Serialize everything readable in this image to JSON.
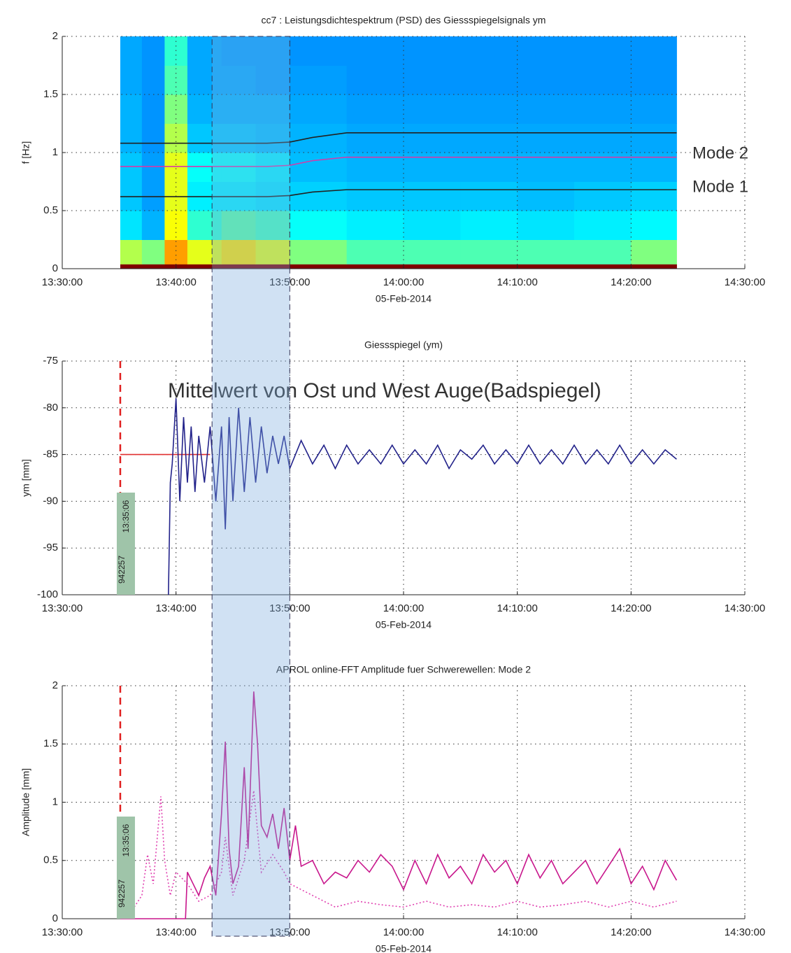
{
  "highlight_span": [
    "13:43:10",
    "13:50:00"
  ],
  "chart_data": [
    {
      "type": "heatmap",
      "title": "cc7 : Leistungsdichtespektrum (PSD) des Giessspiegelsignals ym",
      "x_label": "05-Feb-2014",
      "y_label": "f [Hz]",
      "xlim": [
        "13:30:00",
        "14:30:00"
      ],
      "xticks": [
        "13:30:00",
        "13:40:00",
        "13:50:00",
        "14:00:00",
        "14:10:00",
        "14:20:00",
        "14:30:00"
      ],
      "ylim": [
        0,
        2
      ],
      "yticks": [
        0,
        0.5,
        1,
        1.5,
        2
      ],
      "grid": true,
      "x_edges": [
        "13:35:06",
        "13:37:00",
        "13:39:00",
        "13:41:00",
        "13:44:00",
        "13:47:00",
        "13:50:00",
        "13:55:00",
        "14:00:00",
        "14:05:00",
        "14:10:00",
        "14:15:00",
        "14:20:00",
        "14:24:00"
      ],
      "y_edges": [
        0,
        0.04,
        0.25,
        0.5,
        0.75,
        1,
        1.25,
        1.5,
        1.75,
        2
      ],
      "z": [
        [
          1,
          1,
          1,
          1,
          1,
          1,
          1,
          1,
          1,
          1,
          1,
          1,
          1
        ],
        [
          0.55,
          0.5,
          0.72,
          0.6,
          0.65,
          0.6,
          0.5,
          0.45,
          0.45,
          0.45,
          0.45,
          0.45,
          0.5
        ],
        [
          0.35,
          0.3,
          0.62,
          0.42,
          0.46,
          0.44,
          0.38,
          0.36,
          0.35,
          0.36,
          0.35,
          0.36,
          0.37
        ],
        [
          0.32,
          0.28,
          0.6,
          0.36,
          0.36,
          0.35,
          0.33,
          0.32,
          0.32,
          0.32,
          0.31,
          0.32,
          0.33
        ],
        [
          0.32,
          0.28,
          0.6,
          0.38,
          0.38,
          0.36,
          0.31,
          0.3,
          0.3,
          0.3,
          0.3,
          0.3,
          0.3
        ],
        [
          0.3,
          0.27,
          0.55,
          0.32,
          0.32,
          0.31,
          0.3,
          0.29,
          0.29,
          0.29,
          0.29,
          0.29,
          0.29
        ],
        [
          0.3,
          0.27,
          0.5,
          0.3,
          0.3,
          0.3,
          0.29,
          0.28,
          0.28,
          0.28,
          0.28,
          0.28,
          0.28
        ],
        [
          0.29,
          0.27,
          0.45,
          0.29,
          0.29,
          0.28,
          0.28,
          0.27,
          0.27,
          0.27,
          0.27,
          0.27,
          0.27
        ],
        [
          0.29,
          0.27,
          0.42,
          0.29,
          0.28,
          0.28,
          0.27,
          0.27,
          0.27,
          0.27,
          0.27,
          0.27,
          0.27
        ]
      ],
      "series": [
        {
          "color": "#222222",
          "x": [
            "13:35:06",
            "13:48:00",
            "13:50:00",
            "13:52:00",
            "13:55:00",
            "14:24:00"
          ],
          "values": [
            1.08,
            1.08,
            1.09,
            1.13,
            1.17,
            1.17
          ]
        },
        {
          "color": "#d63aa8",
          "x": [
            "13:35:06",
            "13:48:00",
            "13:50:00",
            "13:52:00",
            "13:55:00",
            "14:24:00"
          ],
          "values": [
            0.88,
            0.88,
            0.89,
            0.93,
            0.96,
            0.96
          ]
        },
        {
          "color": "#222222",
          "x": [
            "13:35:06",
            "13:48:00",
            "13:50:00",
            "13:52:00",
            "13:55:00",
            "14:24:00"
          ],
          "values": [
            0.62,
            0.62,
            0.63,
            0.66,
            0.68,
            0.68
          ]
        }
      ],
      "annotations": [
        "Mode 2",
        "Mode 1"
      ]
    },
    {
      "type": "line",
      "title": "Giessspiegel (ym)",
      "x_label": "05-Feb-2014",
      "y_label": "ym [mm]",
      "xlim": [
        "13:30:00",
        "14:30:00"
      ],
      "xticks": [
        "13:30:00",
        "13:40:00",
        "13:50:00",
        "14:00:00",
        "14:10:00",
        "14:20:00",
        "14:30:00"
      ],
      "ylim": [
        -100,
        -75
      ],
      "yticks": [
        -100,
        -95,
        -90,
        -85,
        -80,
        -75
      ],
      "grid": true,
      "marker": {
        "x": "13:35:06",
        "labels": [
          "942257",
          "13:35:06"
        ]
      },
      "series": [
        {
          "color": "#e03030",
          "x": [
            "13:35:06",
            "13:43:00"
          ],
          "values": [
            -85,
            -85
          ]
        },
        {
          "color": "#22228a",
          "x": [
            "13:39:20",
            "13:39:30",
            "13:39:40",
            "13:40:00",
            "13:40:20",
            "13:40:40",
            "13:41:00",
            "13:41:20",
            "13:41:40",
            "13:42:00",
            "13:42:30",
            "13:43:00",
            "13:43:30",
            "13:44:00",
            "13:44:20",
            "13:44:40",
            "13:45:00",
            "13:45:30",
            "13:46:00",
            "13:46:30",
            "13:47:00",
            "13:47:30",
            "13:48:00",
            "13:48:30",
            "13:49:00",
            "13:49:30",
            "13:50:00",
            "13:51:00",
            "13:52:00",
            "13:53:00",
            "13:54:00",
            "13:55:00",
            "13:56:00",
            "13:57:00",
            "13:58:00",
            "13:59:00",
            "14:00:00",
            "14:01:00",
            "14:02:00",
            "14:03:00",
            "14:04:00",
            "14:05:00",
            "14:06:00",
            "14:07:00",
            "14:08:00",
            "14:09:00",
            "14:10:00",
            "14:11:00",
            "14:12:00",
            "14:13:00",
            "14:14:00",
            "14:15:00",
            "14:16:00",
            "14:17:00",
            "14:18:00",
            "14:19:00",
            "14:20:00",
            "14:21:00",
            "14:22:00",
            "14:23:00",
            "14:24:00"
          ],
          "values": [
            -100,
            -88,
            -86,
            -79,
            -90,
            -81,
            -88,
            -82,
            -89,
            -83,
            -88,
            -82,
            -90,
            -82,
            -93,
            -81,
            -90,
            -80,
            -89,
            -81,
            -88,
            -82,
            -87,
            -83,
            -86,
            -83,
            -86.5,
            -83.5,
            -86,
            -84,
            -86.5,
            -84,
            -86,
            -84.5,
            -86,
            -84,
            -86,
            -84.5,
            -86,
            -84,
            -86.5,
            -84.5,
            -85.5,
            -84,
            -86,
            -84.5,
            -86,
            -84,
            -86,
            -84.5,
            -86,
            -84,
            -86,
            -84.5,
            -86,
            -84,
            -86,
            -84.5,
            -86,
            -84.5,
            -85.5
          ]
        }
      ],
      "annotations": [
        "Mittelwert von Ost und West Auge(Badspiegel)"
      ]
    },
    {
      "type": "line",
      "title": "APROL online-FFT Amplitude fuer Schwerewellen: Mode 2",
      "x_label": "05-Feb-2014",
      "y_label": "Amplitude [mm]",
      "xlim": [
        "13:30:00",
        "14:30:00"
      ],
      "xticks": [
        "13:30:00",
        "13:40:00",
        "13:50:00",
        "14:00:00",
        "14:10:00",
        "14:20:00",
        "14:30:00"
      ],
      "ylim": [
        0,
        2
      ],
      "yticks": [
        0,
        0.5,
        1,
        1.5,
        2
      ],
      "grid": true,
      "marker": {
        "x": "13:35:06",
        "labels": [
          "942257",
          "13:35:06"
        ]
      },
      "series": [
        {
          "color": "#e040b0",
          "dashed": true,
          "x": [
            "13:36:00",
            "13:37:00",
            "13:37:30",
            "13:38:00",
            "13:38:40",
            "13:39:00",
            "13:39:30",
            "13:40:00",
            "13:41:00",
            "13:42:00",
            "13:43:00",
            "13:44:00",
            "13:44:20",
            "13:45:00",
            "13:46:00",
            "13:46:50",
            "13:47:30",
            "13:48:30",
            "13:49:30",
            "13:50:00",
            "13:52:00",
            "13:54:00",
            "13:56:00",
            "13:58:00",
            "14:00:00",
            "14:02:00",
            "14:04:00",
            "14:06:00",
            "14:08:00",
            "14:10:00",
            "14:12:00",
            "14:14:00",
            "14:16:00",
            "14:18:00",
            "14:20:00",
            "14:22:00",
            "14:24:00"
          ],
          "values": [
            0.05,
            0.2,
            0.55,
            0.3,
            1.05,
            0.5,
            0.2,
            0.4,
            0.3,
            0.15,
            0.2,
            0.4,
            0.7,
            0.2,
            0.5,
            1.1,
            0.4,
            0.55,
            0.4,
            0.3,
            0.2,
            0.1,
            0.15,
            0.12,
            0.1,
            0.15,
            0.1,
            0.12,
            0.1,
            0.15,
            0.1,
            0.12,
            0.15,
            0.1,
            0.15,
            0.1,
            0.15
          ]
        },
        {
          "color": "#c8168c",
          "x": [
            "13:35:06",
            "13:40:50",
            "13:41:00",
            "13:41:30",
            "13:42:00",
            "13:42:30",
            "13:43:00",
            "13:43:30",
            "13:44:00",
            "13:44:20",
            "13:44:40",
            "13:45:00",
            "13:45:30",
            "13:46:00",
            "13:46:20",
            "13:46:50",
            "13:47:10",
            "13:47:30",
            "13:48:00",
            "13:48:30",
            "13:49:00",
            "13:49:30",
            "13:50:00",
            "13:50:30",
            "13:51:00",
            "13:52:00",
            "13:53:00",
            "13:54:00",
            "13:55:00",
            "13:56:00",
            "13:57:00",
            "13:58:00",
            "13:59:00",
            "14:00:00",
            "14:01:00",
            "14:02:00",
            "14:03:00",
            "14:04:00",
            "14:05:00",
            "14:06:00",
            "14:07:00",
            "14:08:00",
            "14:09:00",
            "14:10:00",
            "14:11:00",
            "14:12:00",
            "14:13:00",
            "14:14:00",
            "14:15:00",
            "14:16:00",
            "14:17:00",
            "14:18:00",
            "14:19:00",
            "14:20:00",
            "14:21:00",
            "14:22:00",
            "14:23:00",
            "14:24:00"
          ],
          "values": [
            0,
            0,
            0.4,
            0.3,
            0.2,
            0.35,
            0.45,
            0.2,
            0.9,
            1.52,
            0.6,
            0.3,
            0.45,
            1.3,
            0.6,
            1.95,
            1.5,
            0.8,
            0.7,
            0.9,
            0.6,
            0.95,
            0.5,
            0.8,
            0.45,
            0.5,
            0.3,
            0.4,
            0.35,
            0.5,
            0.4,
            0.55,
            0.45,
            0.25,
            0.5,
            0.3,
            0.55,
            0.35,
            0.45,
            0.3,
            0.55,
            0.4,
            0.5,
            0.3,
            0.55,
            0.35,
            0.5,
            0.3,
            0.4,
            0.5,
            0.3,
            0.45,
            0.6,
            0.3,
            0.45,
            0.25,
            0.5,
            0.33
          ]
        }
      ]
    }
  ]
}
